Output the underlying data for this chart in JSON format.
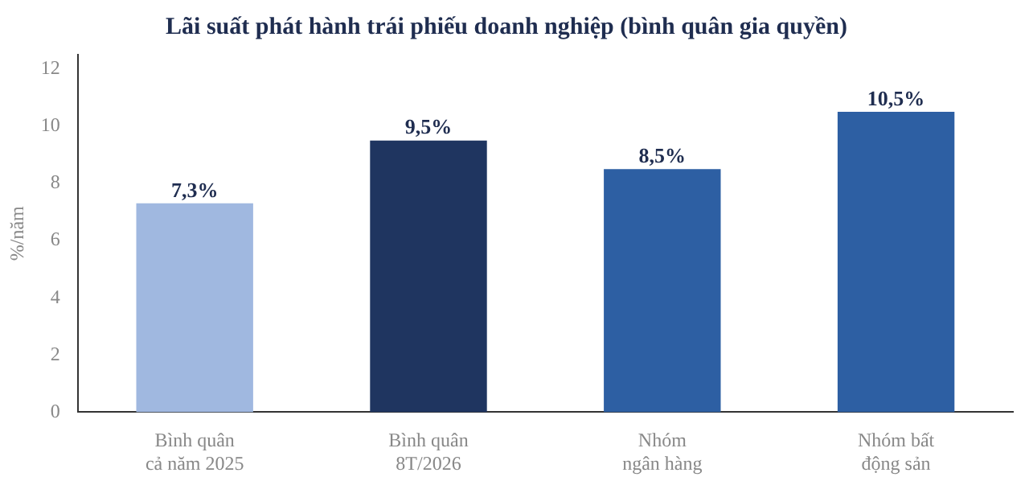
{
  "chart_data": {
    "type": "bar",
    "title": "Lãi suất phát hành trái phiếu doanh nghiệp (bình quân gia quyền)",
    "ylabel": "%/năm",
    "categories": [
      "Bình quân\ncả năm 2025",
      "Bình quân\n8T/2026",
      "Nhóm\nngân hàng",
      "Nhóm bất\nđộng sản"
    ],
    "values": [
      7.3,
      9.5,
      8.5,
      10.5
    ],
    "colors": [
      "#a0b8e0",
      "#1f3560",
      "#2d5fa3",
      "#2d5fa3"
    ],
    "value_labels": [
      "7,3%",
      "9,5%",
      "8,5%",
      "10,5%"
    ],
    "ylim": [
      0,
      12.5
    ],
    "yticks": [
      0,
      2,
      4,
      6,
      8,
      10,
      12
    ],
    "grid": false,
    "legend": false
  }
}
